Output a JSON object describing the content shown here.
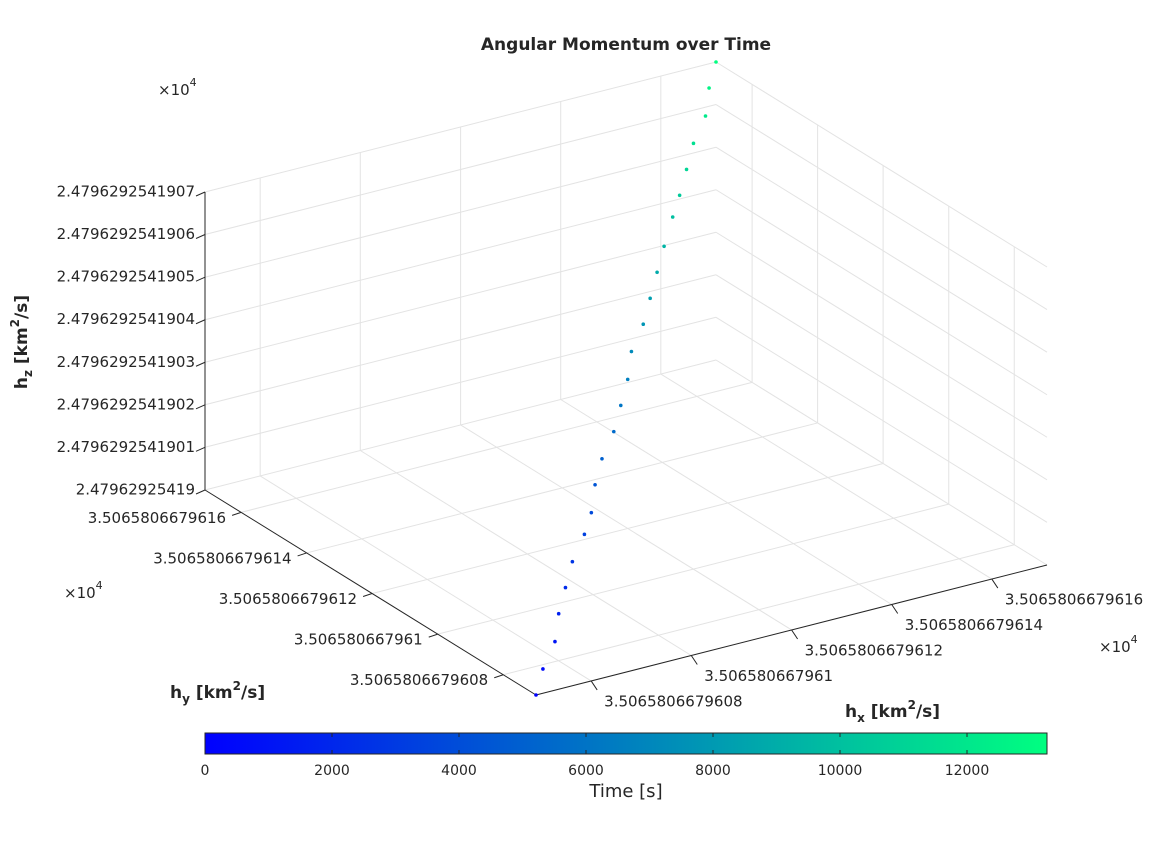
{
  "chart_data": {
    "type": "scatter3",
    "title": "Angular Momentum over Time",
    "xlabel": {
      "text": "h",
      "sub": "x",
      "unit": " [km",
      "sup": "2",
      "unit_end": "/s]"
    },
    "ylabel": {
      "text": "h",
      "sub": "y",
      "unit": " [km",
      "sup": "2",
      "unit_end": "/s]"
    },
    "zlabel": {
      "text": "h",
      "sub": "z",
      "unit": " [km",
      "sup": "2",
      "unit_end": "/s]"
    },
    "x_multiplier": {
      "base": "×10",
      "exp": "4"
    },
    "y_multiplier": {
      "base": "×10",
      "exp": "4"
    },
    "z_multiplier": {
      "base": "×10",
      "exp": "4"
    },
    "xlim": [
      3.50658066796069,
      3.50658066796171
    ],
    "ylim": [
      3.5065806679607,
      3.50658066796171
    ],
    "zlim": [
      2.47962925419,
      2.4796292541907
    ],
    "xticks": [
      3.5065806679608,
      3.506580667961,
      3.5065806679612,
      3.5065806679614,
      3.5065806679616
    ],
    "yticks": [
      3.5065806679608,
      3.506580667961,
      3.5065806679612,
      3.5065806679614,
      3.5065806679616
    ],
    "zticks": [
      2.47962925419,
      2.4796292541901,
      2.4796292541902,
      2.4796292541903,
      2.4796292541904,
      2.4796292541905,
      2.4796292541906,
      2.4796292541907
    ],
    "grid": true,
    "x": [
      3.50658066796069,
      3.50658066796073,
      3.50658066796078,
      3.50658066796082,
      3.50658066796086,
      3.5065806679609,
      3.50658066796095,
      3.50658066796099,
      3.50658066796103,
      3.50658066796107,
      3.50658066796112,
      3.50658066796116,
      3.5065806679612,
      3.50658066796124,
      3.50658066796129,
      3.50658066796133,
      3.50658066796137,
      3.50658066796141,
      3.50658066796146,
      3.5065806679615,
      3.50658066796154,
      3.50658066796158,
      3.50658066796163,
      3.50658066796167,
      3.50658066796171
    ],
    "y": [
      3.5065806679607,
      3.50658066796074,
      3.50658066796078,
      3.50658066796083,
      3.50658066796087,
      3.50658066796091,
      3.50658066796095,
      3.50658066796099,
      3.50658066796104,
      3.50658066796108,
      3.50658066796112,
      3.50658066796116,
      3.5065806679612,
      3.50658066796125,
      3.50658066796129,
      3.50658066796133,
      3.50658066796137,
      3.50658066796141,
      3.50658066796146,
      3.5065806679615,
      3.50658066796154,
      3.50658066796158,
      3.50658066796162,
      3.50658066796167,
      3.50658066796171
    ],
    "z": [
      2.47962925419,
      2.47962925419003,
      2.47962925419006,
      2.47962925419009,
      2.47962925419012,
      2.47962925419015,
      2.47962925419018,
      2.4796292541902,
      2.47962925419023,
      2.47962925419026,
      2.47962925419029,
      2.47962925419032,
      2.47962925419035,
      2.47962925419038,
      2.47962925419041,
      2.47962925419044,
      2.47962925419047,
      2.4796292541905,
      2.47962925419053,
      2.47962925419055,
      2.47962925419058,
      2.47962925419061,
      2.47962925419064,
      2.47962925419067,
      2.4796292541907
    ],
    "c": [
      0,
      552.5,
      1105,
      1657.5,
      2210,
      2762.5,
      3315,
      3867.5,
      4420,
      4972.5,
      5525,
      6077.5,
      6630,
      7182.5,
      7735,
      8287.5,
      8840,
      9392.5,
      9945,
      10497.5,
      11050,
      11602.5,
      12155,
      12707.5,
      13260
    ],
    "colormap": [
      "#0000ff",
      "#00ff80"
    ],
    "clim": [
      0,
      13260
    ],
    "colorbar_ticks": [
      0,
      2000,
      4000,
      6000,
      8000,
      10000,
      12000
    ],
    "colorbar_label": "Time [s]"
  }
}
